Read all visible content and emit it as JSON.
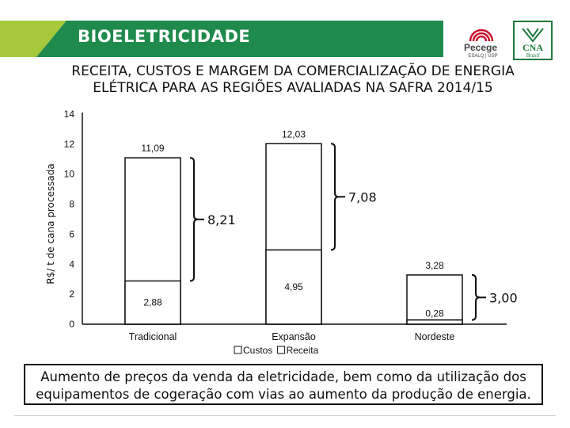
{
  "header": {
    "title": "BIOELETRICIDADE",
    "band_color": "#1e8a4c",
    "accent_color": "#a5c93a"
  },
  "logos": {
    "pecege": {
      "name": "Pecege",
      "sub": "ESALQ | USP"
    },
    "cna": {
      "name": "CNA",
      "sub": "Brasil"
    }
  },
  "chart_data": {
    "type": "bar",
    "title_line1": "RECEITA, CUSTOS E MARGEM DA COMERCIALIZAÇÃO DE ENERGIA",
    "title_line2": "ELÉTRICA PARA AS REGIÕES AVALIADAS NA SAFRA 2014/15",
    "ylabel": "R$/ t de cana processada",
    "xlabel": "",
    "ylim": [
      0,
      14
    ],
    "yticks": [
      "0",
      "2",
      "4",
      "6",
      "8",
      "10",
      "12",
      "14"
    ],
    "categories": [
      "Tradicional",
      "Expansão",
      "Nordeste"
    ],
    "series": [
      {
        "name": "Custos",
        "values": [
          2.88,
          4.95,
          0.28
        ],
        "labels": [
          "2,88",
          "4,95",
          "0,28"
        ]
      },
      {
        "name": "Receita",
        "values": [
          11.09,
          12.03,
          3.28
        ],
        "labels": [
          "11,09",
          "12,03",
          "3,28"
        ]
      }
    ],
    "margins": {
      "values": [
        8.21,
        7.08,
        3.0
      ],
      "labels": [
        "8,21",
        "7,08",
        "3,00"
      ]
    },
    "legend": {
      "position": "bottom",
      "items": [
        "Custos",
        "Receita"
      ]
    },
    "grid": false
  },
  "note": "Aumento de preços da venda da eletricidade, bem como da utilização dos equipamentos de cogeração com vias ao aumento da produção de energia."
}
